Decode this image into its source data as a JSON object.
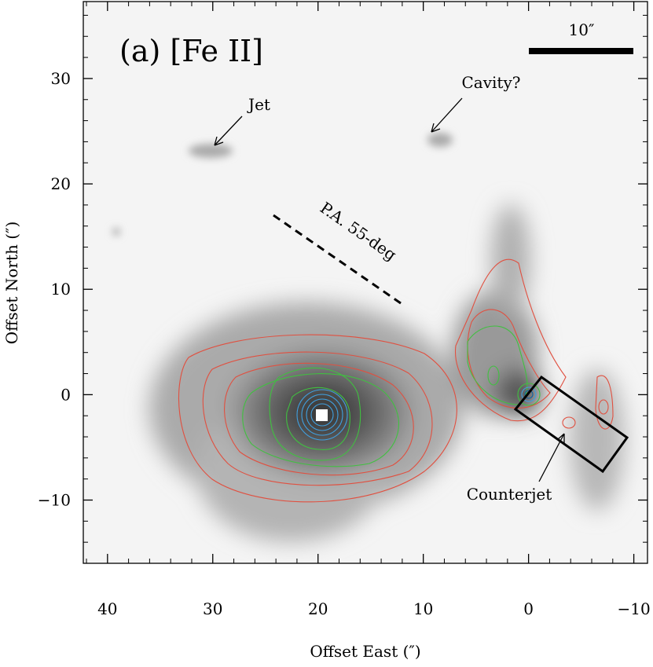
{
  "chart_data": {
    "type": "image",
    "title": "(a) [Fe II]",
    "xlabel": "Offset East (″)",
    "ylabel": "Offset North (″)",
    "xlim": [
      42.3,
      -11.3
    ],
    "ylim": [
      -16,
      37.3
    ],
    "xticks": [
      40,
      30,
      20,
      10,
      0,
      {
        "value": -10,
        "label": "−10"
      }
    ],
    "yticks": [
      {
        "value": -10,
        "label": "−10"
      },
      0,
      10,
      20,
      30
    ],
    "annotations": {
      "scale_bar": "10″",
      "jet": "Jet",
      "cavity": "Cavity?",
      "position_angle": "P.A. 55-deg",
      "counterjet": "Counterjet"
    }
  }
}
